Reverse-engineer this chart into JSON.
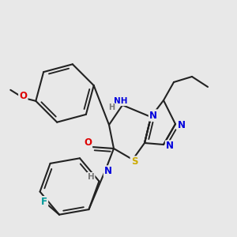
{
  "bg_color": "#e8e8e8",
  "bond_color": "#222222",
  "bond_width": 1.5,
  "atom_colors": {
    "N": "#0000dd",
    "O": "#dd0000",
    "S": "#ccaa00",
    "F": "#009999",
    "H": "#777777",
    "C": "#222222"
  },
  "fs": 7.5
}
